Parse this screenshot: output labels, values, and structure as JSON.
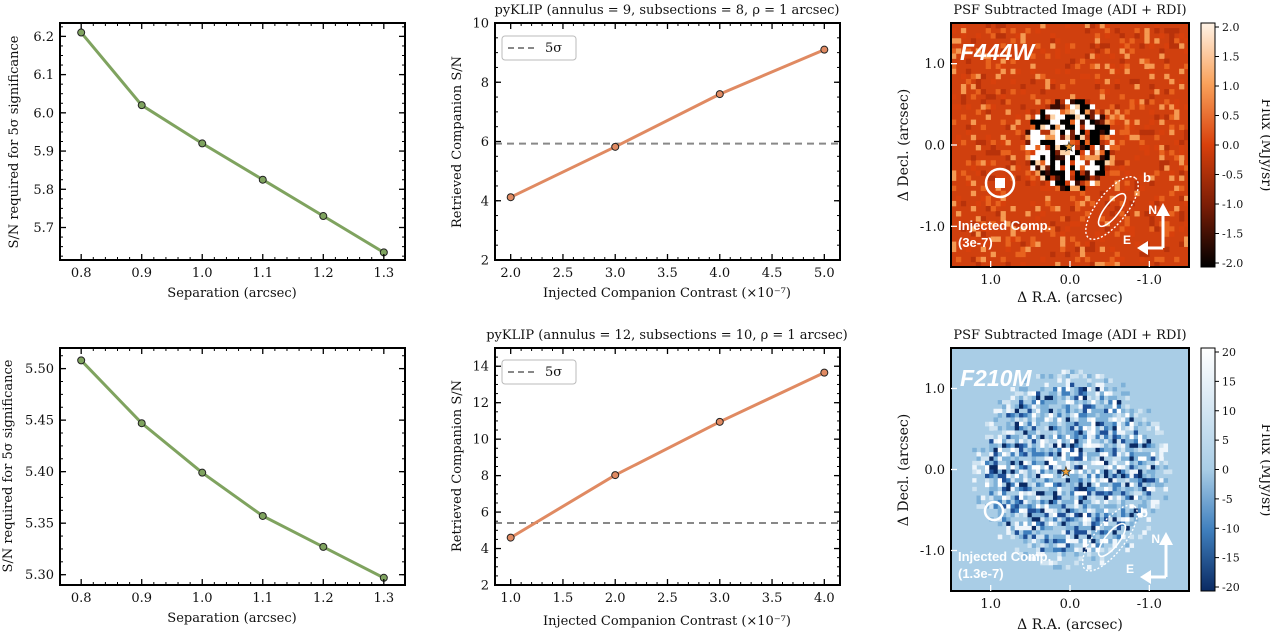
{
  "chart_data": [
    {
      "type": "line",
      "panel": "sn-required-top",
      "title": "",
      "xlabel": "Separation (arcsec)",
      "ylabel": "S/N required for 5σ significance",
      "x": [
        0.8,
        0.9,
        1.0,
        1.1,
        1.2,
        1.3
      ],
      "y": [
        6.21,
        6.02,
        5.92,
        5.825,
        5.73,
        5.635
      ],
      "xlim": [
        0.765,
        1.335
      ],
      "ylim": [
        5.615,
        6.235
      ],
      "xticks": [
        0.8,
        0.9,
        1.0,
        1.1,
        1.2,
        1.3
      ],
      "xtick_labels": [
        "0.8",
        "0.9",
        "1.0",
        "1.1",
        "1.2",
        "1.3"
      ],
      "yticks": [
        5.7,
        5.8,
        5.9,
        6.0,
        6.1,
        6.2
      ],
      "ytick_labels": [
        "5.7",
        "5.8",
        "5.9",
        "6.0",
        "6.1",
        "6.2"
      ],
      "line_color": "#7fa35f",
      "marker_color": "#7fa35f"
    },
    {
      "type": "line",
      "panel": "retrieved-sn-top",
      "title": "pyKLIP (annulus = 9, subsections = 8, ρ = 1 arcsec)",
      "xlabel": "Injected Companion Contrast (×10⁻⁷)",
      "ylabel": "Retrieved Companion S/N",
      "x": [
        2.0,
        3.0,
        4.0,
        5.0
      ],
      "y": [
        4.12,
        5.82,
        7.6,
        9.1
      ],
      "xlim": [
        1.85,
        5.15
      ],
      "ylim": [
        2,
        10
      ],
      "xticks": [
        2.0,
        2.5,
        3.0,
        3.5,
        4.0,
        4.5,
        5.0
      ],
      "xtick_labels": [
        "2.0",
        "2.5",
        "3.0",
        "3.5",
        "4.0",
        "4.5",
        "5.0"
      ],
      "yticks": [
        2,
        4,
        6,
        8,
        10
      ],
      "ytick_labels": [
        "2",
        "4",
        "6",
        "8",
        "10"
      ],
      "threshold": 5.93,
      "legend": "5σ",
      "line_color": "#e08a62",
      "marker_color": "#e08a62"
    },
    {
      "type": "heatmap",
      "panel": "psf-image-top",
      "title": "PSF Subtracted Image (ADI + RDI)",
      "xlabel": "Δ R.A. (arcsec)",
      "ylabel": "Δ Decl. (arcsec)",
      "filter": "F444W",
      "colorbar_label": "Flux (MJy/sr)",
      "colorbar_ticks": [
        "2.0",
        "1.5",
        "1.0",
        "0.5",
        "0.0",
        "-0.5",
        "-1.0",
        "-1.5",
        "-2.0"
      ],
      "xtick_labels": [
        "1.0",
        "0.0",
        "-1.0"
      ],
      "ytick_labels": [
        "1.0",
        "0.0",
        "-1.0"
      ],
      "companion_label": "b",
      "injected_label": "Injected Comp.",
      "injected_value": "(3e-7)",
      "north": "N",
      "east": "E"
    },
    {
      "type": "line",
      "panel": "sn-required-bottom",
      "title": "",
      "xlabel": "Separation (arcsec)",
      "ylabel": "S/N required for 5σ significance",
      "x": [
        0.8,
        0.9,
        1.0,
        1.1,
        1.2,
        1.3
      ],
      "y": [
        5.508,
        5.447,
        5.399,
        5.357,
        5.327,
        5.297
      ],
      "xlim": [
        0.765,
        1.335
      ],
      "ylim": [
        5.29,
        5.52
      ],
      "xticks": [
        0.8,
        0.9,
        1.0,
        1.1,
        1.2,
        1.3
      ],
      "xtick_labels": [
        "0.8",
        "0.9",
        "1.0",
        "1.1",
        "1.2",
        "1.3"
      ],
      "yticks": [
        5.3,
        5.35,
        5.4,
        5.45,
        5.5
      ],
      "ytick_labels": [
        "5.30",
        "5.35",
        "5.40",
        "5.45",
        "5.50"
      ],
      "line_color": "#7fa35f",
      "marker_color": "#7fa35f"
    },
    {
      "type": "line",
      "panel": "retrieved-sn-bottom",
      "title": "pyKLIP (annulus = 12, subsections = 10, ρ = 1 arcsec)",
      "xlabel": "Injected Companion Contrast (×10⁻⁷)",
      "ylabel": "Retrieved Companion S/N",
      "x": [
        1.0,
        2.0,
        3.0,
        4.0
      ],
      "y": [
        4.6,
        8.03,
        10.95,
        13.65
      ],
      "xlim": [
        0.85,
        4.15
      ],
      "ylim": [
        2,
        15
      ],
      "xticks": [
        1.0,
        1.5,
        2.0,
        2.5,
        3.0,
        3.5,
        4.0
      ],
      "xtick_labels": [
        "1.0",
        "1.5",
        "2.0",
        "2.5",
        "3.0",
        "3.5",
        "4.0"
      ],
      "yticks": [
        2,
        4,
        6,
        8,
        10,
        12,
        14
      ],
      "ytick_labels": [
        "2",
        "4",
        "6",
        "8",
        "10",
        "12",
        "14"
      ],
      "threshold": 5.4,
      "legend": "5σ",
      "line_color": "#e08a62",
      "marker_color": "#e08a62"
    },
    {
      "type": "heatmap",
      "panel": "psf-image-bottom",
      "title": "PSF Subtracted Image (ADI + RDI)",
      "xlabel": "Δ R.A. (arcsec)",
      "ylabel": "Δ Decl. (arcsec)",
      "filter": "F210M",
      "colorbar_label": "Flux (MJy/sr)",
      "colorbar_ticks": [
        "20",
        "15",
        "10",
        "5",
        "0",
        "-5",
        "-10",
        "-15",
        "-20"
      ],
      "xtick_labels": [
        "1.0",
        "0.0",
        "-1.0"
      ],
      "ytick_labels": [
        "1.0",
        "0.0",
        "-1.0"
      ],
      "companion_label": "b",
      "injected_label": "Injected Comp.",
      "injected_value": "(1.3e-7)",
      "north": "N",
      "east": "E"
    }
  ]
}
